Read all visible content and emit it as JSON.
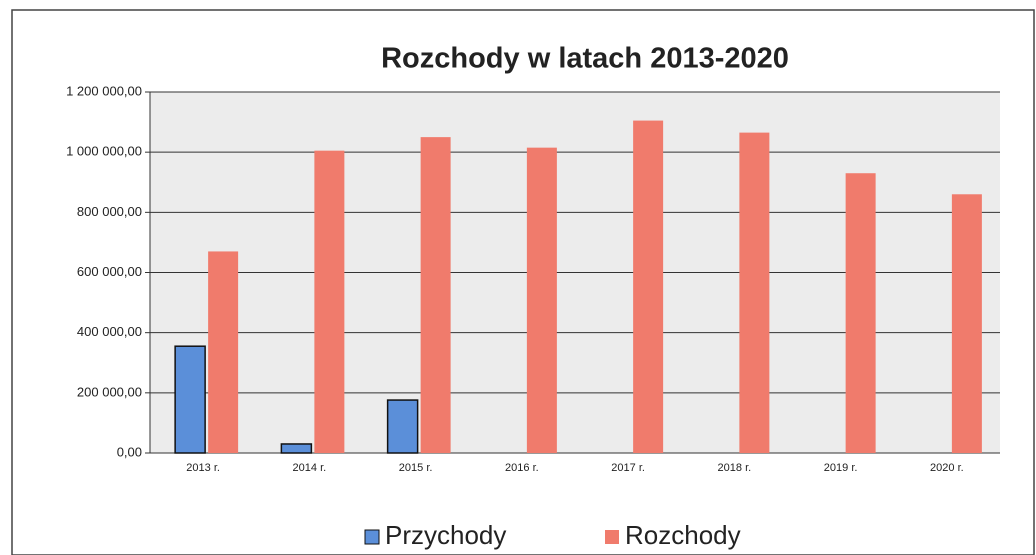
{
  "chart_data": {
    "type": "bar",
    "title": "Rozchody w latach 2013-2020",
    "categories": [
      "2013 r.",
      "2014 r.",
      "2015 r.",
      "2016 r.",
      "2017 r.",
      "2018 r.",
      "2019 r.",
      "2020 r."
    ],
    "series": [
      {
        "name": "Przychody",
        "color": "#5b8fd9",
        "values": [
          355000,
          30000,
          176000,
          0,
          0,
          0,
          0,
          0
        ]
      },
      {
        "name": "Rozchody",
        "color": "#f07b6c",
        "values": [
          670000,
          1005000,
          1050000,
          1015000,
          1105000,
          1065000,
          930000,
          860000
        ]
      }
    ],
    "ylim": [
      0,
      1200000
    ],
    "yticks": [
      {
        "value": 0,
        "label": "0,00"
      },
      {
        "value": 200000,
        "label": "200 000,00"
      },
      {
        "value": 400000,
        "label": "400 000,00"
      },
      {
        "value": 600000,
        "label": "600 000,00"
      },
      {
        "value": 800000,
        "label": "800 000,00"
      },
      {
        "value": 1000000,
        "label": "1 000 000,00"
      },
      {
        "value": 1200000,
        "label": "1 200 000,00"
      }
    ],
    "grid": true,
    "legend": "bottom"
  }
}
